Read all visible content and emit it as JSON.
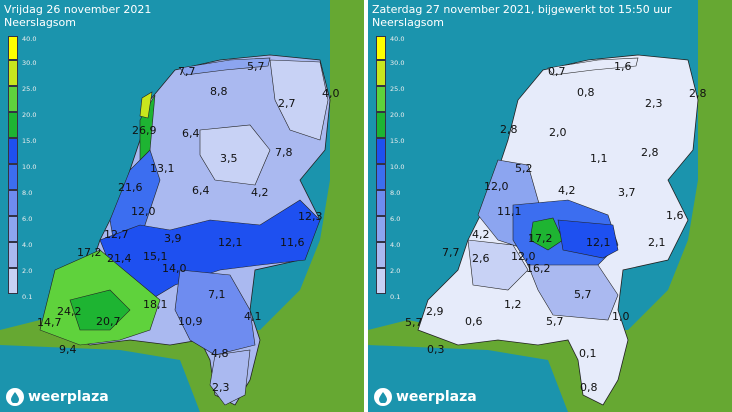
{
  "left_panel": {
    "title": "Vrijdag 26 november 2021",
    "subtitle": "Neerslagsom",
    "values": [
      "7,7",
      "5,7",
      "8,8",
      "4,0",
      "2,7",
      "26,9",
      "6,4",
      "3,5",
      "7,8",
      "13,1",
      "21,6",
      "4,2",
      "6,4",
      "12,0",
      "12,3",
      "12,7",
      "3,9",
      "12,1",
      "11,6",
      "17,2",
      "21,4",
      "15,1",
      "14,0",
      "7,1",
      "24,2",
      "18,1",
      "14,7",
      "20,7",
      "10,9",
      "4,1",
      "9,4",
      "4,8",
      "2,3"
    ]
  },
  "right_panel": {
    "title": "Zaterdag 27 november 2021, bijgewerkt tot 15:50 uur",
    "subtitle": "Neerslagsom",
    "values": [
      "0,7",
      "1,6",
      "0,8",
      "2,3",
      "2,8",
      "2,8",
      "2,0",
      "5,2",
      "1,1",
      "2,8",
      "12,0",
      "4,2",
      "3,7",
      "1,6",
      "11,1",
      "4,2",
      "17,2",
      "12,1",
      "2,1",
      "7,7",
      "2,6",
      "12,0",
      "16,2",
      "5,7",
      "1,2",
      "2,9",
      "5,7",
      "0,6",
      "5,7",
      "1,0",
      "0,3",
      "0,1",
      "0,8"
    ]
  },
  "legend": {
    "labels": [
      "40.0",
      "30.0",
      "25.0",
      "20.0",
      "15.0",
      "10.0",
      "8.0",
      "6.0",
      "4.0",
      "2.0",
      "0.1"
    ],
    "colors": [
      "#ffff00",
      "#c8e61e",
      "#5fd23c",
      "#1eb432",
      "#1e50f0",
      "#3c6ef0",
      "#6e8cf0",
      "#8ca5f0",
      "#aab9f0",
      "#c8d2f5",
      "#e6ebfa"
    ]
  },
  "brand": {
    "logo_text": "weerplaza"
  }
}
